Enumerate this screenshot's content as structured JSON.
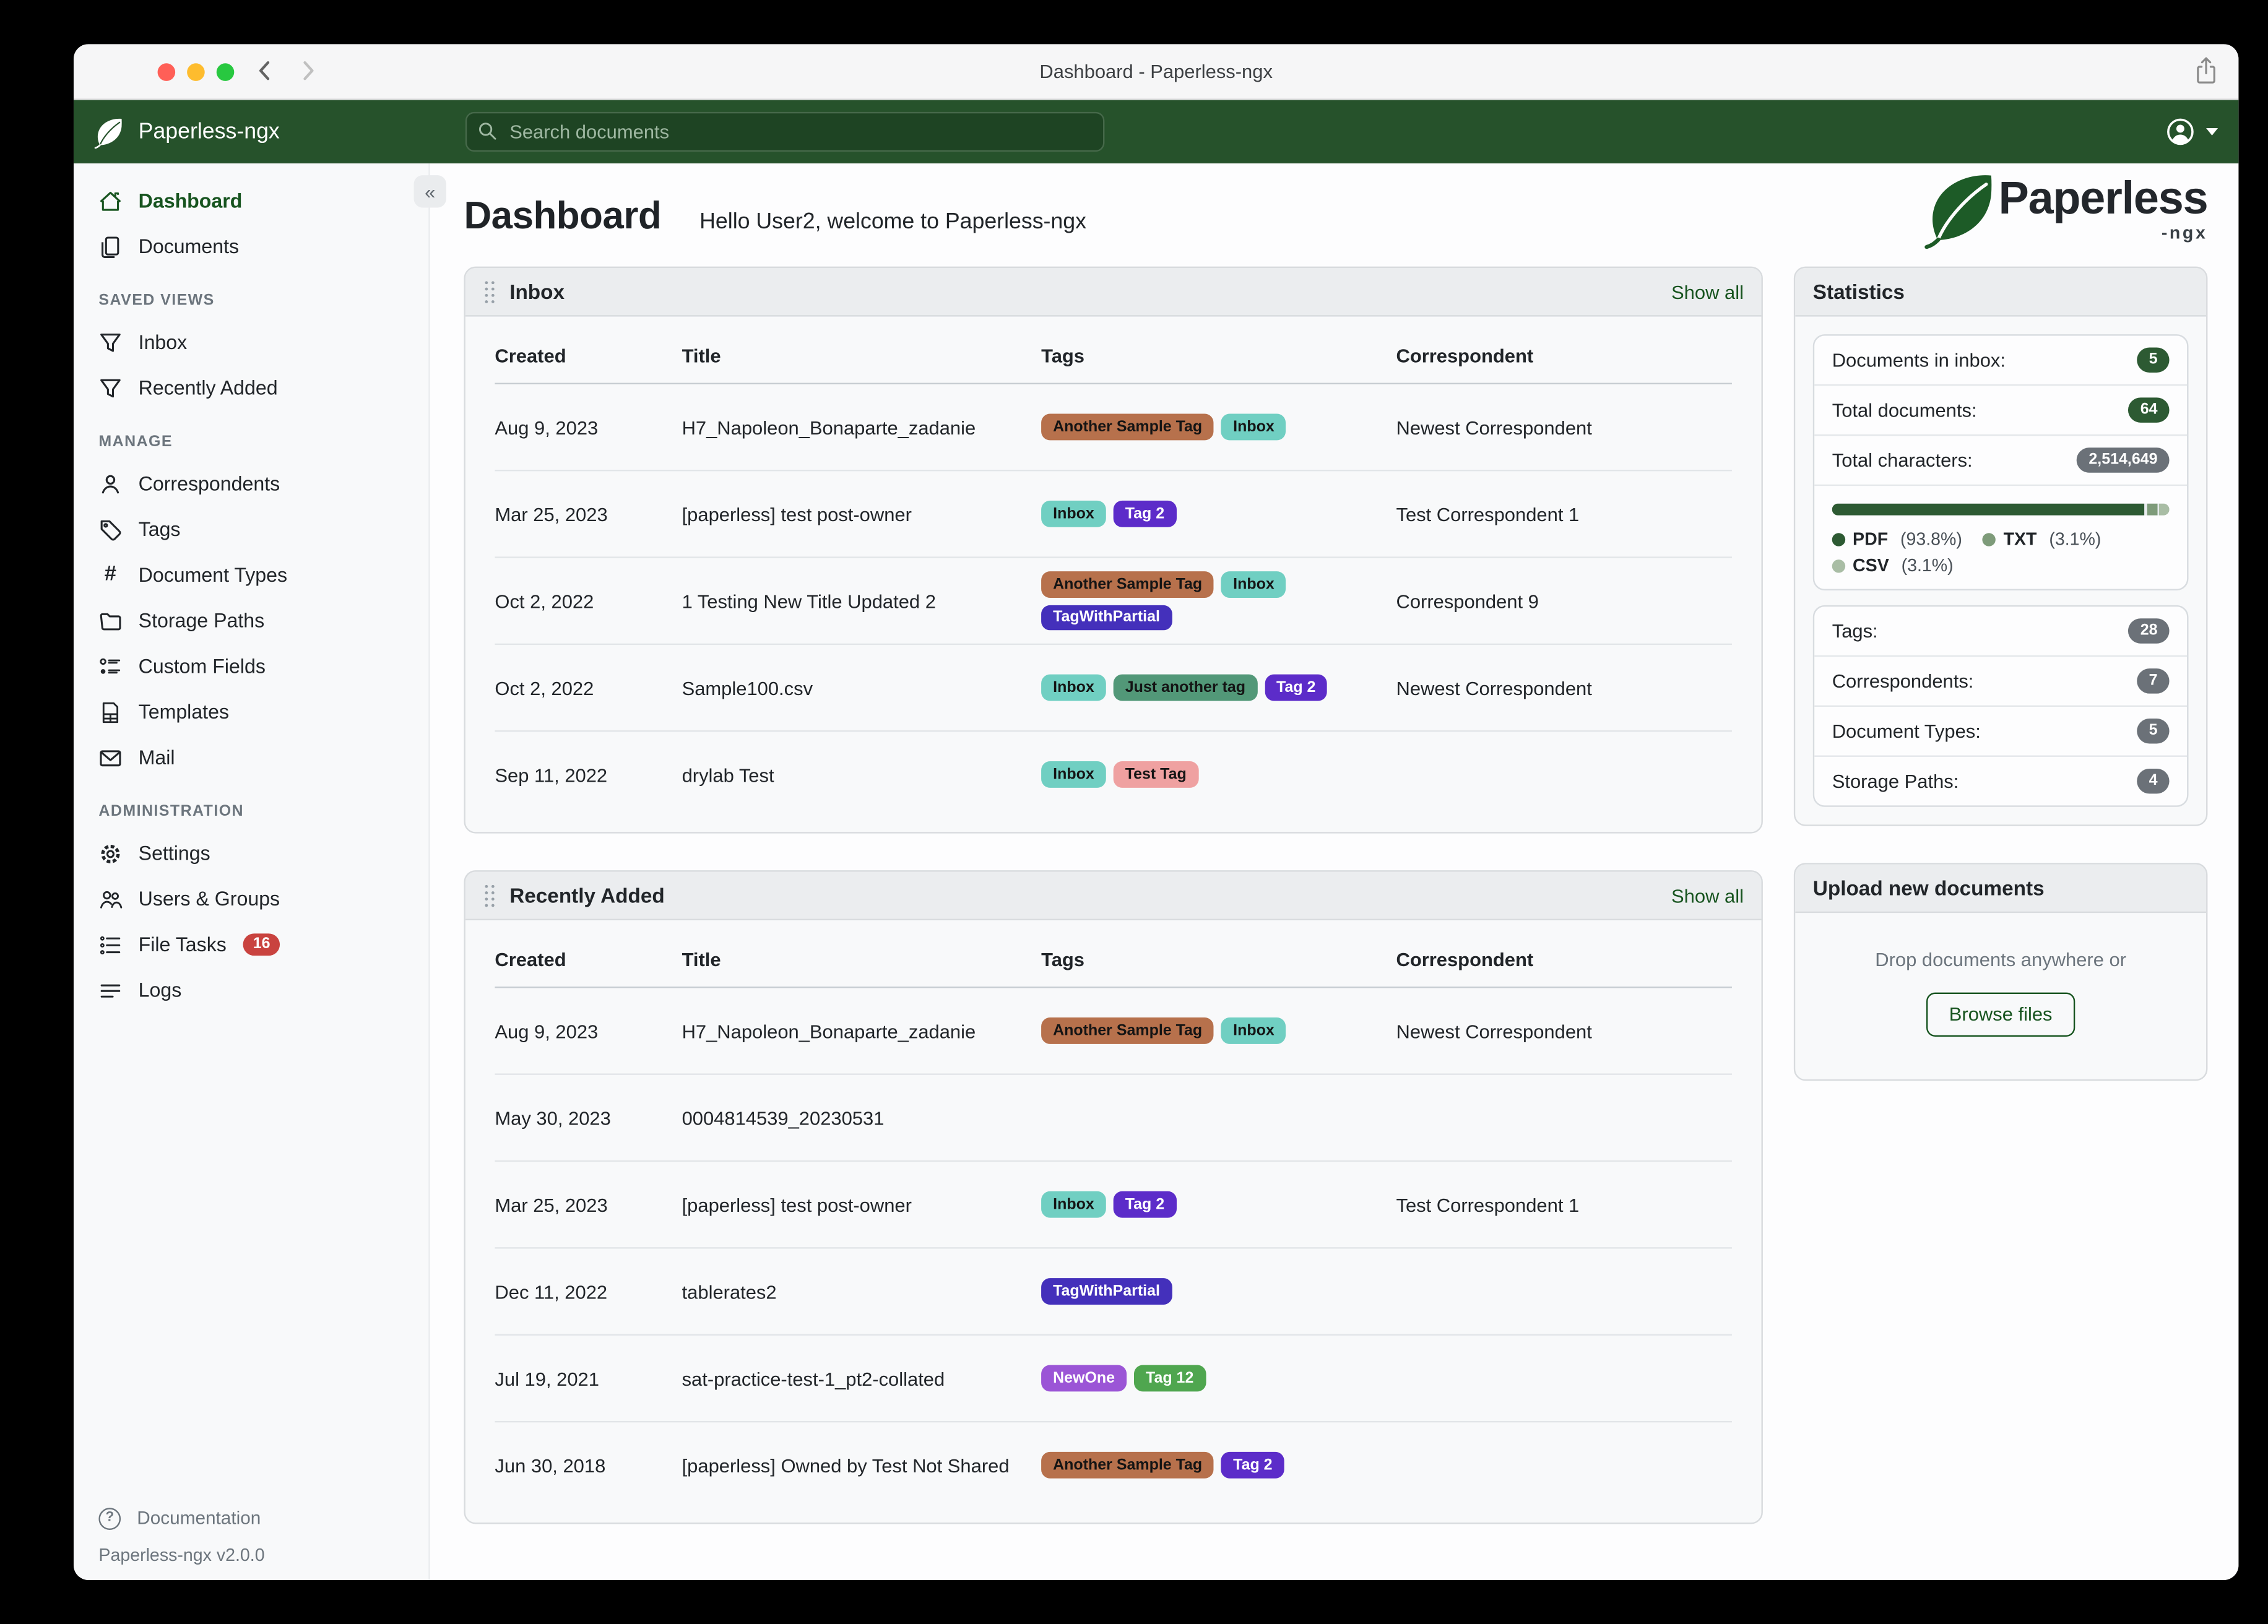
{
  "window": {
    "title": "Dashboard - Paperless-ngx"
  },
  "navbar": {
    "brand": "Paperless-ngx",
    "search_placeholder": "Search documents"
  },
  "icons": {
    "titlebar": [
      "close",
      "minimize",
      "zoom",
      "back-chevron",
      "forward-chevron",
      "share"
    ],
    "navbar": [
      "leaf",
      "magnifier",
      "person-circle",
      "caret-down"
    ],
    "card_header": [
      "drag-handle"
    ]
  },
  "sidebar": {
    "primary": [
      {
        "label": "Dashboard",
        "icon": "house",
        "active": true
      },
      {
        "label": "Documents",
        "icon": "documents",
        "active": false
      }
    ],
    "sections": [
      {
        "heading": "SAVED VIEWS",
        "items": [
          {
            "label": "Inbox",
            "icon": "funnel"
          },
          {
            "label": "Recently Added",
            "icon": "funnel"
          }
        ]
      },
      {
        "heading": "MANAGE",
        "items": [
          {
            "label": "Correspondents",
            "icon": "person"
          },
          {
            "label": "Tags",
            "icon": "tag"
          },
          {
            "label": "Document Types",
            "icon": "hash"
          },
          {
            "label": "Storage Paths",
            "icon": "folder"
          },
          {
            "label": "Custom Fields",
            "icon": "fields"
          },
          {
            "label": "Templates",
            "icon": "template"
          },
          {
            "label": "Mail",
            "icon": "envelope"
          }
        ]
      },
      {
        "heading": "ADMINISTRATION",
        "items": [
          {
            "label": "Settings",
            "icon": "gear"
          },
          {
            "label": "Users & Groups",
            "icon": "people"
          },
          {
            "label": "File Tasks",
            "icon": "tasks",
            "badge": "16"
          },
          {
            "label": "Logs",
            "icon": "logs"
          }
        ]
      }
    ],
    "footer": {
      "documentation_label": "Documentation",
      "version": "Paperless-ngx v2.0.0"
    }
  },
  "header": {
    "title": "Dashboard",
    "greeting": "Hello User2, welcome to Paperless-ngx"
  },
  "logo": {
    "word": "Paperless",
    "suffix": "-ngx"
  },
  "tag_palette": {
    "Another Sample Tag": {
      "bg": "#b7714c",
      "fg": "#141414"
    },
    "Inbox": {
      "bg": "#70cfc2",
      "fg": "#141414"
    },
    "Tag 2": {
      "bg": "#5c2cc9",
      "fg": "#ffffff"
    },
    "TagWithPartial": {
      "bg": "#4430bb",
      "fg": "#ffffff"
    },
    "Just another tag": {
      "bg": "#529878",
      "fg": "#141414"
    },
    "Test Tag": {
      "bg": "#efa1a1",
      "fg": "#141414"
    },
    "NewOne": {
      "bg": "#9b55d6",
      "fg": "#ffffff"
    },
    "Tag 12": {
      "bg": "#4fa64f",
      "fg": "#ffffff"
    }
  },
  "widgets": [
    {
      "title": "Inbox",
      "show_all": "Show all",
      "columns": [
        "Created",
        "Title",
        "Tags",
        "Correspondent"
      ],
      "rows": [
        {
          "created": "Aug 9, 2023",
          "title": "H7_Napoleon_Bonaparte_zadanie",
          "tags": [
            "Another Sample Tag",
            "Inbox"
          ],
          "correspondent": "Newest Correspondent"
        },
        {
          "created": "Mar 25, 2023",
          "title": "[paperless] test post-owner",
          "tags": [
            "Inbox",
            "Tag 2"
          ],
          "correspondent": "Test Correspondent 1"
        },
        {
          "created": "Oct 2, 2022",
          "title": "1 Testing New Title Updated 2",
          "tags": [
            "Another Sample Tag",
            "Inbox",
            "TagWithPartial"
          ],
          "correspondent": "Correspondent 9"
        },
        {
          "created": "Oct 2, 2022",
          "title": "Sample100.csv",
          "tags": [
            "Inbox",
            "Just another tag",
            "Tag 2"
          ],
          "correspondent": "Newest Correspondent"
        },
        {
          "created": "Sep 11, 2022",
          "title": "drylab Test",
          "tags": [
            "Inbox",
            "Test Tag"
          ],
          "correspondent": ""
        }
      ]
    },
    {
      "title": "Recently Added",
      "show_all": "Show all",
      "columns": [
        "Created",
        "Title",
        "Tags",
        "Correspondent"
      ],
      "rows": [
        {
          "created": "Aug 9, 2023",
          "title": "H7_Napoleon_Bonaparte_zadanie",
          "tags": [
            "Another Sample Tag",
            "Inbox"
          ],
          "correspondent": "Newest Correspondent"
        },
        {
          "created": "May 30, 2023",
          "title": "0004814539_20230531",
          "tags": [],
          "correspondent": ""
        },
        {
          "created": "Mar 25, 2023",
          "title": "[paperless] test post-owner",
          "tags": [
            "Inbox",
            "Tag 2"
          ],
          "correspondent": "Test Correspondent 1"
        },
        {
          "created": "Dec 11, 2022",
          "title": "tablerates2",
          "tags": [
            "TagWithPartial"
          ],
          "correspondent": ""
        },
        {
          "created": "Jul 19, 2021",
          "title": "sat-practice-test-1_pt2-collated",
          "tags": [
            "NewOne",
            "Tag 12"
          ],
          "correspondent": ""
        },
        {
          "created": "Jun 30, 2018",
          "title": "[paperless] Owned by Test Not Shared",
          "tags": [
            "Another Sample Tag",
            "Tag 2"
          ],
          "correspondent": ""
        }
      ]
    }
  ],
  "statistics": {
    "title": "Statistics",
    "rows_primary": [
      {
        "label": "Documents in inbox:",
        "value": "5",
        "badge": "green"
      },
      {
        "label": "Total documents:",
        "value": "64",
        "badge": "green"
      },
      {
        "label": "Total characters:",
        "value": "2,514,649",
        "badge": "gray"
      }
    ],
    "chart": {
      "type": "bar",
      "segments": [
        {
          "label": "PDF",
          "percent": 93.8,
          "percent_text": "(93.8%)",
          "color": "#2d5a33"
        },
        {
          "label": "TXT",
          "percent": 3.1,
          "percent_text": "(3.1%)",
          "color": "#7e9b7a"
        },
        {
          "label": "CSV",
          "percent": 3.1,
          "percent_text": "(3.1%)",
          "color": "#a9bda5"
        }
      ]
    },
    "rows_secondary": [
      {
        "label": "Tags:",
        "value": "28",
        "badge": "gray"
      },
      {
        "label": "Correspondents:",
        "value": "7",
        "badge": "gray"
      },
      {
        "label": "Document Types:",
        "value": "5",
        "badge": "gray"
      },
      {
        "label": "Storage Paths:",
        "value": "4",
        "badge": "gray"
      }
    ]
  },
  "upload": {
    "title": "Upload new documents",
    "hint": "Drop documents anywhere or",
    "button": "Browse files"
  },
  "colors": {
    "accent": "#17541f",
    "navbar_green": "#26522b",
    "search_bg": "#1e4423",
    "search_border": "#46694a",
    "badge_green": "#2d5a33",
    "badge_gray": "#6b7178",
    "badge_red": "#c9433f",
    "traffic_close": "#ff5f57",
    "traffic_minimize": "#febc2e",
    "traffic_zoom": "#28c840"
  }
}
